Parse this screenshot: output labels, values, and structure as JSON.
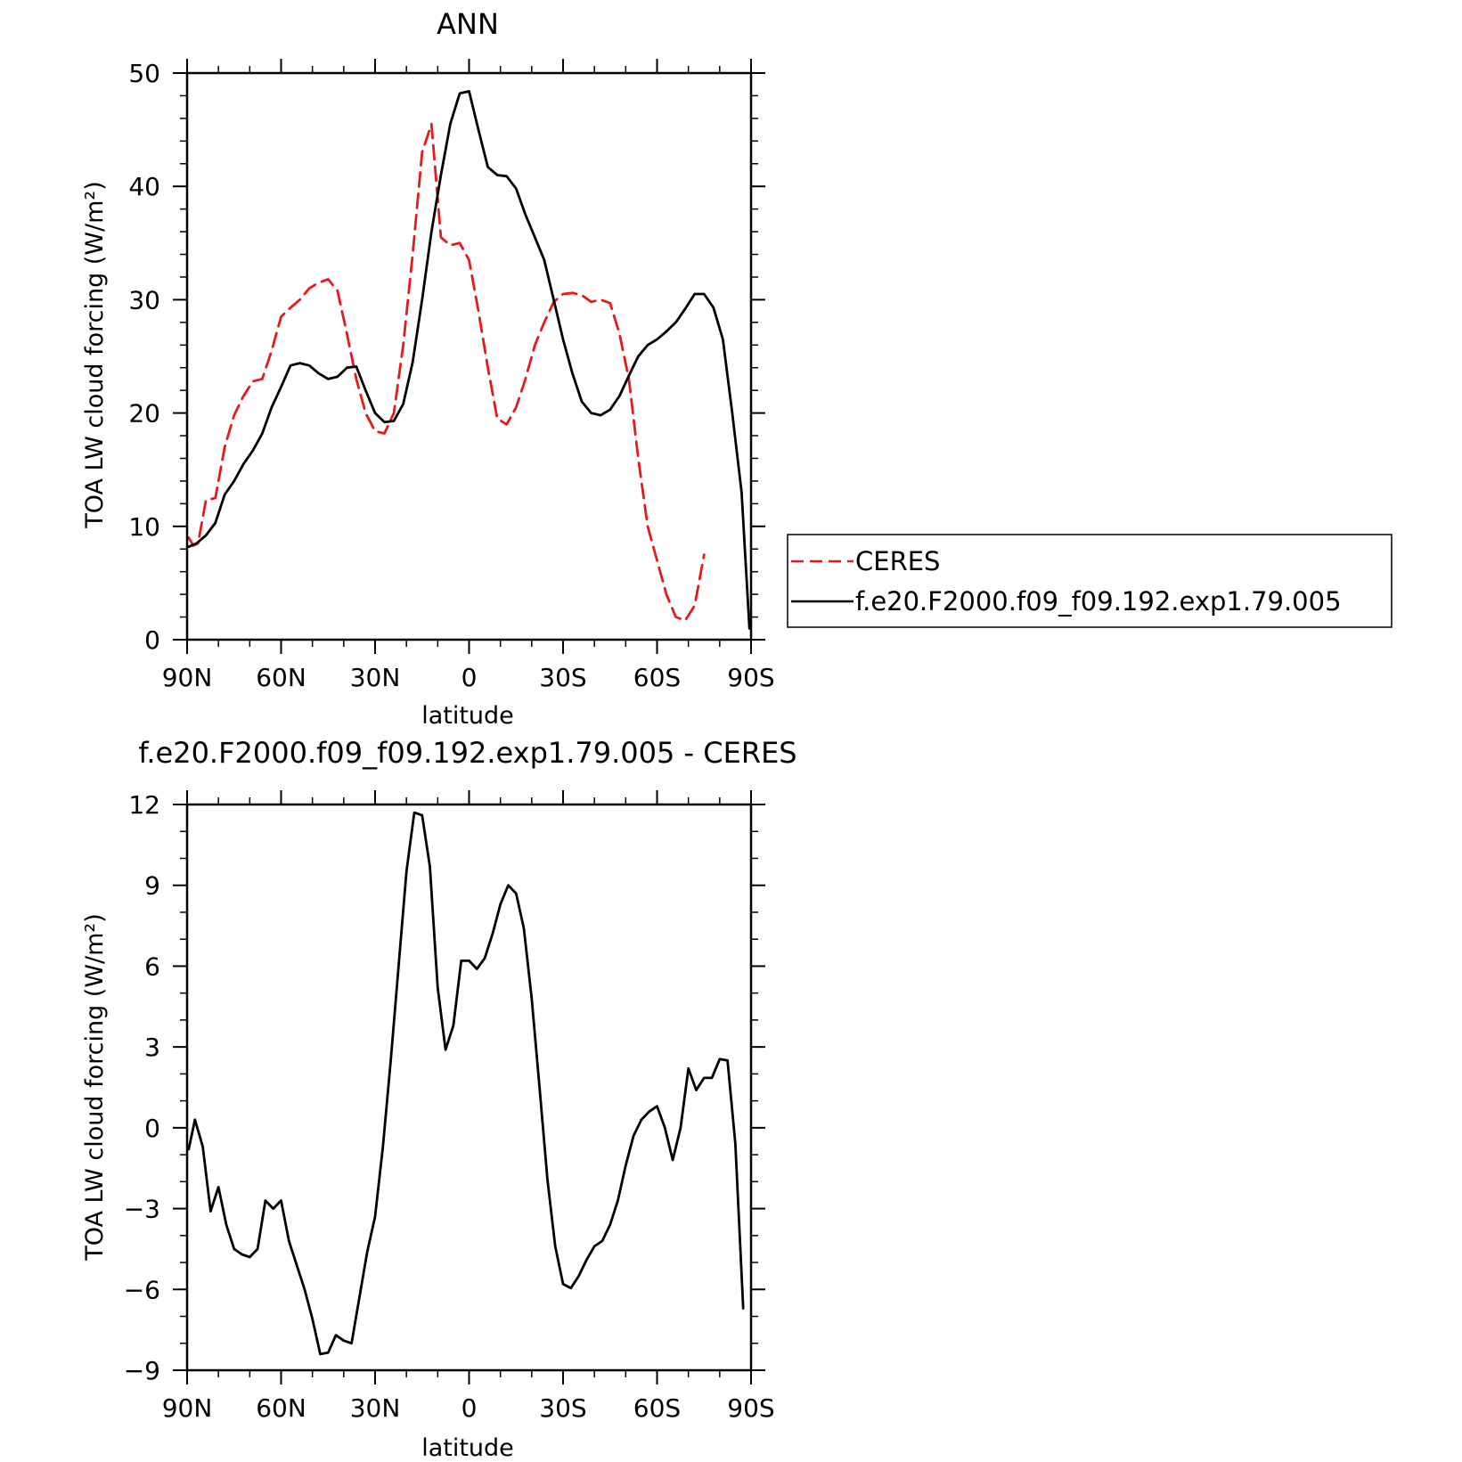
{
  "chart_data": [
    {
      "type": "line",
      "title": "ANN",
      "xlabel": "latitude",
      "ylabel": "TOA LW cloud forcing (W/m²)",
      "x_ticks": [
        {
          "value": 90,
          "label": "90N"
        },
        {
          "value": 60,
          "label": "60N"
        },
        {
          "value": 30,
          "label": "30N"
        },
        {
          "value": 0,
          "label": "0"
        },
        {
          "value": -30,
          "label": "30S"
        },
        {
          "value": -60,
          "label": "60S"
        },
        {
          "value": -90,
          "label": "90S"
        }
      ],
      "y_ticks": [
        {
          "value": 0,
          "label": "0"
        },
        {
          "value": 10,
          "label": "10"
        },
        {
          "value": 20,
          "label": "20"
        },
        {
          "value": 30,
          "label": "30"
        },
        {
          "value": 40,
          "label": "40"
        },
        {
          "value": 50,
          "label": "50"
        }
      ],
      "xlim": [
        90,
        -90
      ],
      "ylim": [
        0,
        50
      ],
      "grid": false,
      "legend_position": "right",
      "series": [
        {
          "name": "CERES",
          "color": "#e41a1c",
          "style": "dashed",
          "points": [
            [
              89.5,
              9
            ],
            [
              88,
              8.3
            ],
            [
              86.5,
              8.5
            ],
            [
              84,
              12.3
            ],
            [
              81,
              12.5
            ],
            [
              78,
              17
            ],
            [
              75,
              19.8
            ],
            [
              72,
              21.5
            ],
            [
              69,
              22.8
            ],
            [
              66,
              23
            ],
            [
              63,
              25.5
            ],
            [
              60,
              28.5
            ],
            [
              57,
              29.3
            ],
            [
              54,
              30
            ],
            [
              51,
              31
            ],
            [
              48,
              31.5
            ],
            [
              45,
              31.8
            ],
            [
              42,
              30.8
            ],
            [
              39,
              27
            ],
            [
              36,
              23
            ],
            [
              33,
              20
            ],
            [
              30,
              18.4
            ],
            [
              27,
              18.2
            ],
            [
              24,
              20
            ],
            [
              21,
              26
            ],
            [
              18,
              34
            ],
            [
              15,
              43
            ],
            [
              12,
              45.5
            ],
            [
              9,
              35.5
            ],
            [
              6,
              34.8
            ],
            [
              3,
              35
            ],
            [
              0,
              33.5
            ],
            [
              -3,
              29
            ],
            [
              -6,
              24
            ],
            [
              -9,
              19.5
            ],
            [
              -12,
              19
            ],
            [
              -15,
              20.5
            ],
            [
              -18,
              23
            ],
            [
              -21,
              26
            ],
            [
              -24,
              28
            ],
            [
              -27,
              29.8
            ],
            [
              -30,
              30.5
            ],
            [
              -33,
              30.6
            ],
            [
              -36,
              30.4
            ],
            [
              -39,
              29.8
            ],
            [
              -42,
              30
            ],
            [
              -45,
              29.7
            ],
            [
              -48,
              27
            ],
            [
              -51,
              23
            ],
            [
              -54,
              16
            ],
            [
              -57,
              10
            ],
            [
              -60,
              7
            ],
            [
              -63,
              4
            ],
            [
              -66,
              2
            ],
            [
              -69,
              1.7
            ],
            [
              -72,
              3
            ],
            [
              -75,
              7.5
            ]
          ]
        },
        {
          "name": "f.e20.F2000.f09_f09.192.exp1.79.005",
          "color": "#000000",
          "style": "solid",
          "points": [
            [
              89.5,
              8.2
            ],
            [
              87,
              8.5
            ],
            [
              84,
              9.2
            ],
            [
              81,
              10.3
            ],
            [
              78,
              12.8
            ],
            [
              75,
              14
            ],
            [
              72,
              15.5
            ],
            [
              69,
              16.7
            ],
            [
              66,
              18.2
            ],
            [
              63,
              20.5
            ],
            [
              60,
              22.3
            ],
            [
              57,
              24.2
            ],
            [
              54,
              24.4
            ],
            [
              51,
              24.2
            ],
            [
              48,
              23.5
            ],
            [
              45,
              23
            ],
            [
              42,
              23.2
            ],
            [
              39,
              24
            ],
            [
              36,
              24.1
            ],
            [
              33,
              22
            ],
            [
              30,
              20
            ],
            [
              27,
              19.2
            ],
            [
              24,
              19.3
            ],
            [
              21,
              20.8
            ],
            [
              18,
              24.5
            ],
            [
              15,
              30
            ],
            [
              12,
              36
            ],
            [
              9,
              41
            ],
            [
              6,
              45.5
            ],
            [
              3,
              48.2
            ],
            [
              0,
              48.4
            ],
            [
              -3,
              45
            ],
            [
              -6,
              41.7
            ],
            [
              -9,
              41
            ],
            [
              -12,
              40.9
            ],
            [
              -15,
              39.8
            ],
            [
              -18,
              37.5
            ],
            [
              -21,
              35.5
            ],
            [
              -24,
              33.5
            ],
            [
              -27,
              30
            ],
            [
              -30,
              26.5
            ],
            [
              -33,
              23.5
            ],
            [
              -36,
              21
            ],
            [
              -39,
              20
            ],
            [
              -42,
              19.8
            ],
            [
              -45,
              20.3
            ],
            [
              -48,
              21.5
            ],
            [
              -51,
              23.3
            ],
            [
              -54,
              25
            ],
            [
              -57,
              26
            ],
            [
              -60,
              26.5
            ],
            [
              -63,
              27.2
            ],
            [
              -66,
              28
            ],
            [
              -69,
              29.2
            ],
            [
              -72,
              30.5
            ],
            [
              -75,
              30.5
            ],
            [
              -78,
              29.3
            ],
            [
              -81,
              26.5
            ],
            [
              -84,
              20
            ],
            [
              -87,
              13
            ],
            [
              -89.5,
              1
            ]
          ]
        }
      ]
    },
    {
      "type": "line",
      "title": "f.e20.F2000.f09_f09.192.exp1.79.005 - CERES",
      "xlabel": "latitude",
      "ylabel": "TOA LW cloud forcing (W/m²)",
      "x_ticks": [
        {
          "value": 90,
          "label": "90N"
        },
        {
          "value": 60,
          "label": "60N"
        },
        {
          "value": 30,
          "label": "30N"
        },
        {
          "value": 0,
          "label": "0"
        },
        {
          "value": -30,
          "label": "30S"
        },
        {
          "value": -60,
          "label": "60S"
        },
        {
          "value": -90,
          "label": "90S"
        }
      ],
      "y_ticks": [
        {
          "value": -9,
          "label": "−9"
        },
        {
          "value": -6,
          "label": "−6"
        },
        {
          "value": -3,
          "label": "−3"
        },
        {
          "value": 0,
          "label": "0"
        },
        {
          "value": 3,
          "label": "3"
        },
        {
          "value": 6,
          "label": "6"
        },
        {
          "value": 9,
          "label": "9"
        },
        {
          "value": 12,
          "label": "12"
        }
      ],
      "xlim": [
        90,
        -90
      ],
      "ylim": [
        -9,
        12
      ],
      "grid": false,
      "series": [
        {
          "color": "#000000",
          "style": "solid",
          "points": [
            [
              89.5,
              -0.8
            ],
            [
              87.5,
              0.3
            ],
            [
              85,
              -0.7
            ],
            [
              82.5,
              -3.1
            ],
            [
              80,
              -2.2
            ],
            [
              77.5,
              -3.6
            ],
            [
              75,
              -4.5
            ],
            [
              72.5,
              -4.7
            ],
            [
              70,
              -4.8
            ],
            [
              67.5,
              -4.5
            ],
            [
              65,
              -2.7
            ],
            [
              62.5,
              -3
            ],
            [
              60,
              -2.7
            ],
            [
              57.5,
              -4.2
            ],
            [
              55,
              -5.1
            ],
            [
              52.5,
              -6
            ],
            [
              50,
              -7.1
            ],
            [
              47.5,
              -8.4
            ],
            [
              45,
              -8.35
            ],
            [
              42.5,
              -7.7
            ],
            [
              40,
              -7.9
            ],
            [
              37.5,
              -8
            ],
            [
              35,
              -6.3
            ],
            [
              32.5,
              -4.6
            ],
            [
              30,
              -3.3
            ],
            [
              27.5,
              -0.7
            ],
            [
              25,
              2.5
            ],
            [
              22.5,
              6
            ],
            [
              20,
              9.5
            ],
            [
              17.5,
              11.7
            ],
            [
              15,
              11.6
            ],
            [
              12.5,
              9.7
            ],
            [
              10,
              5.2
            ],
            [
              7.5,
              2.9
            ],
            [
              5,
              3.8
            ],
            [
              2.5,
              6.2
            ],
            [
              0,
              6.2
            ],
            [
              -2.5,
              5.9
            ],
            [
              -5,
              6.3
            ],
            [
              -7.5,
              7.2
            ],
            [
              -10,
              8.3
            ],
            [
              -12.5,
              9
            ],
            [
              -15,
              8.7
            ],
            [
              -17.5,
              7.4
            ],
            [
              -20,
              4.8
            ],
            [
              -22.5,
              1.5
            ],
            [
              -25,
              -1.9
            ],
            [
              -27.5,
              -4.4
            ],
            [
              -30,
              -5.8
            ],
            [
              -32.5,
              -5.95
            ],
            [
              -35,
              -5.5
            ],
            [
              -37.5,
              -4.9
            ],
            [
              -40,
              -4.4
            ],
            [
              -42.5,
              -4.2
            ],
            [
              -45,
              -3.6
            ],
            [
              -47.5,
              -2.7
            ],
            [
              -50,
              -1.4
            ],
            [
              -52.5,
              -0.3
            ],
            [
              -55,
              0.3
            ],
            [
              -57.5,
              0.6
            ],
            [
              -60,
              0.8
            ],
            [
              -62.5,
              0
            ],
            [
              -65,
              -1.2
            ],
            [
              -67.5,
              0
            ],
            [
              -70,
              2.2
            ],
            [
              -72.5,
              1.4
            ],
            [
              -75,
              1.85
            ],
            [
              -77.5,
              1.85
            ],
            [
              -80,
              2.55
            ],
            [
              -82.5,
              2.5
            ],
            [
              -85,
              -0.6
            ],
            [
              -87.5,
              -6.7
            ]
          ]
        }
      ]
    }
  ]
}
